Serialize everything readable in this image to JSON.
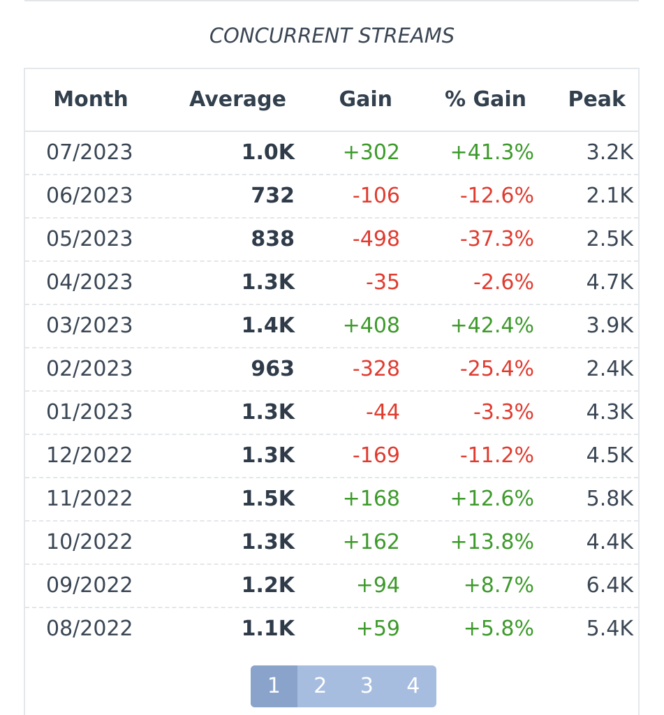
{
  "section": {
    "title": "CONCURRENT STREAMS"
  },
  "table": {
    "headers": {
      "month": "Month",
      "average": "Average",
      "gain": "Gain",
      "pct_gain": "% Gain",
      "peak": "Peak"
    },
    "rows": [
      {
        "month": "07/2023",
        "average": "1.0K",
        "gain": "+302",
        "pct_gain": "+41.3%",
        "peak": "3.2K",
        "trend": "positive"
      },
      {
        "month": "06/2023",
        "average": "732",
        "gain": "-106",
        "pct_gain": "-12.6%",
        "peak": "2.1K",
        "trend": "negative"
      },
      {
        "month": "05/2023",
        "average": "838",
        "gain": "-498",
        "pct_gain": "-37.3%",
        "peak": "2.5K",
        "trend": "negative"
      },
      {
        "month": "04/2023",
        "average": "1.3K",
        "gain": "-35",
        "pct_gain": "-2.6%",
        "peak": "4.7K",
        "trend": "negative"
      },
      {
        "month": "03/2023",
        "average": "1.4K",
        "gain": "+408",
        "pct_gain": "+42.4%",
        "peak": "3.9K",
        "trend": "positive"
      },
      {
        "month": "02/2023",
        "average": "963",
        "gain": "-328",
        "pct_gain": "-25.4%",
        "peak": "2.4K",
        "trend": "negative"
      },
      {
        "month": "01/2023",
        "average": "1.3K",
        "gain": "-44",
        "pct_gain": "-3.3%",
        "peak": "4.3K",
        "trend": "negative"
      },
      {
        "month": "12/2022",
        "average": "1.3K",
        "gain": "-169",
        "pct_gain": "-11.2%",
        "peak": "4.5K",
        "trend": "negative"
      },
      {
        "month": "11/2022",
        "average": "1.5K",
        "gain": "+168",
        "pct_gain": "+12.6%",
        "peak": "5.8K",
        "trend": "positive"
      },
      {
        "month": "10/2022",
        "average": "1.3K",
        "gain": "+162",
        "pct_gain": "+13.8%",
        "peak": "4.4K",
        "trend": "positive"
      },
      {
        "month": "09/2022",
        "average": "1.2K",
        "gain": "+94",
        "pct_gain": "+8.7%",
        "peak": "6.4K",
        "trend": "positive"
      },
      {
        "month": "08/2022",
        "average": "1.1K",
        "gain": "+59",
        "pct_gain": "+5.8%",
        "peak": "5.4K",
        "trend": "positive"
      }
    ]
  },
  "pagination": {
    "pages": [
      "1",
      "2",
      "3",
      "4"
    ],
    "current": "1"
  },
  "colors": {
    "positive": "#3d9a2b",
    "negative": "#e03b2f",
    "pager_bg": "#a7bde0",
    "pager_active": "#8aa3cb"
  }
}
